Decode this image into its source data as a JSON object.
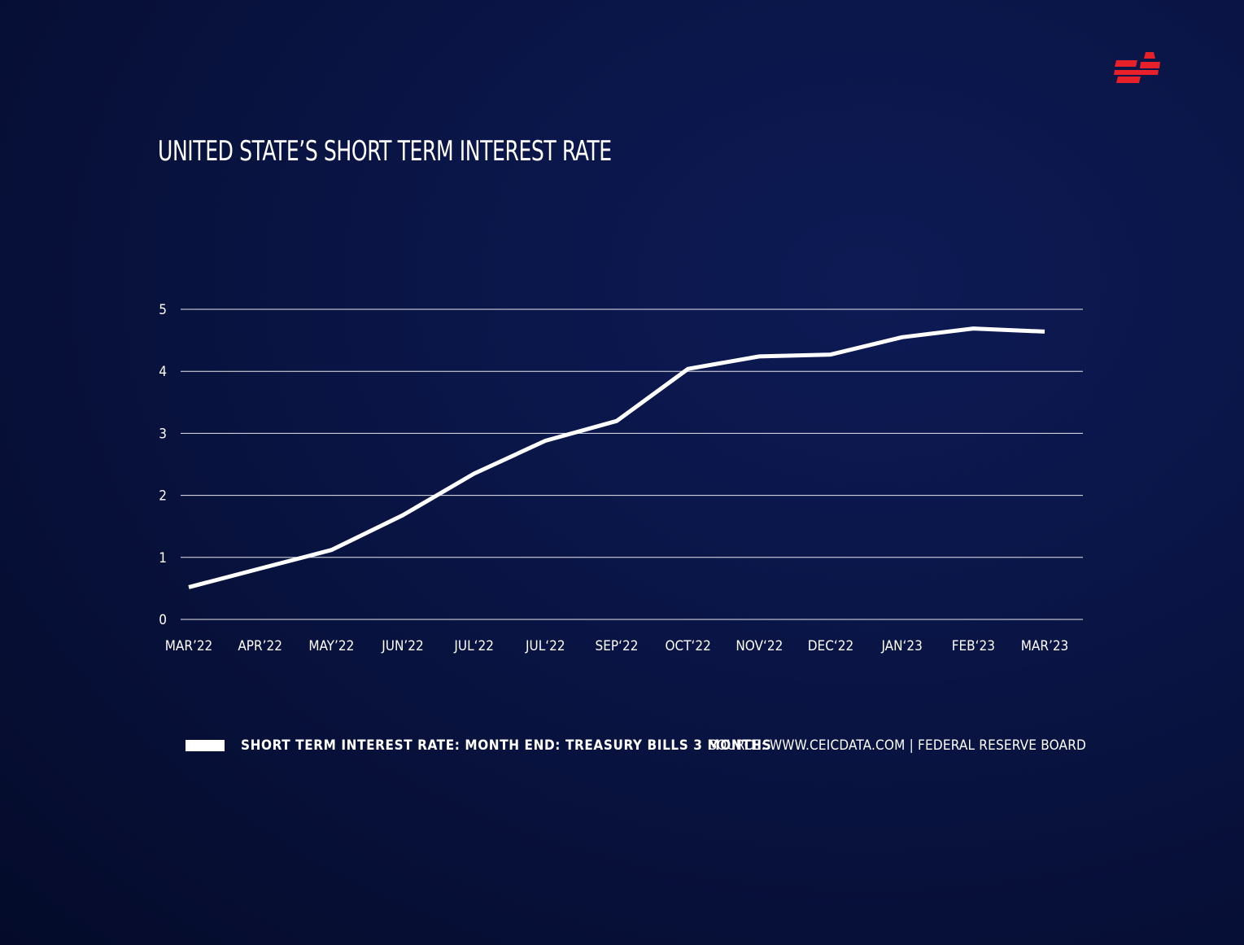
{
  "brand": {
    "logo_icon": "brand-logo-icon",
    "accent": "#e8202a"
  },
  "chart_data": {
    "type": "line",
    "title": "UNITED STATE’S SHORT TERM INTEREST RATE",
    "categories": [
      "MAR’22",
      "APR’22",
      "MAY’22",
      "JUN’22",
      "JUL‘22",
      "JUL‘22",
      "SEP‘22",
      "OCT‘22",
      "NOV‘22",
      "DEC‘22",
      "JAN‘23",
      "FEB‘23",
      "MAR’23"
    ],
    "series": [
      {
        "name": "SHORT TERM INTEREST RATE: MONTH END: TREASURY BILLS 3 MONTHS",
        "color": "#ffffff",
        "values": [
          0.52,
          0.82,
          1.12,
          1.68,
          2.35,
          2.88,
          3.2,
          4.04,
          4.24,
          4.27,
          4.55,
          4.69,
          4.64
        ]
      }
    ],
    "yticks": [
      0,
      1,
      2,
      3,
      4,
      5
    ],
    "ylim": [
      0,
      5
    ],
    "xlabel": "",
    "ylabel": "",
    "grid": true,
    "legend_position": "bottom-left"
  },
  "legend": {
    "label": "SHORT TERM INTEREST RATE: MONTH END: TREASURY BILLS 3 MONTHS"
  },
  "source": {
    "text": "SOURCE: WWW.CEICDATA.COM | FEDERAL RESERVE BOARD"
  }
}
